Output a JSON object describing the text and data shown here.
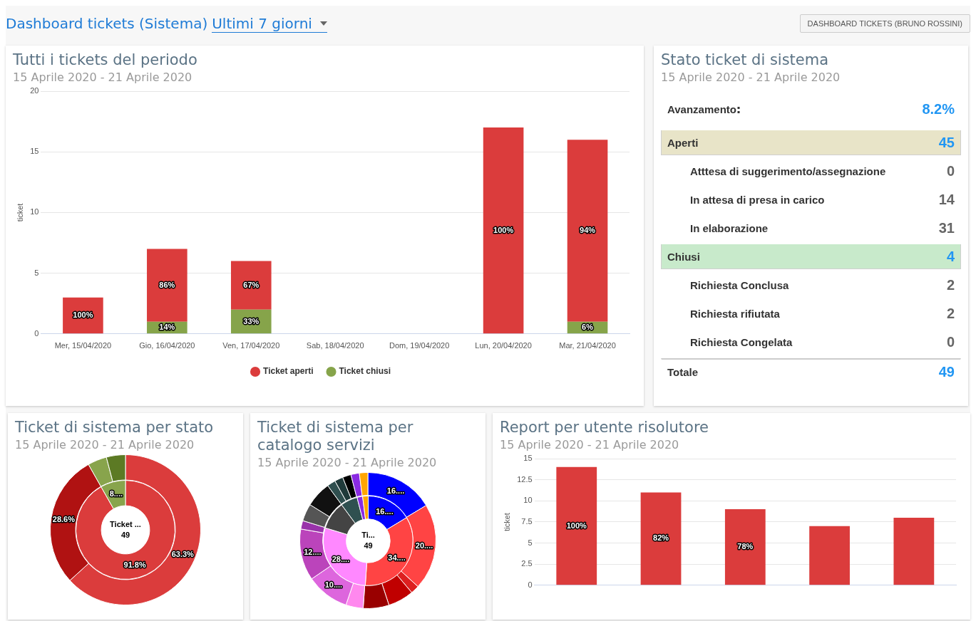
{
  "chart_data": [
    {
      "type": "other",
      "title": "Dashboard tickets (Sistema)",
      "annotations": [
        "Ultimi 7 giorni",
        "DASHBOARD TICKETS (BRUNO ROSSINI)"
      ]
    },
    {
      "type": "bar",
      "title": "Tutti i tickets del periodo",
      "subtitle": "15 Aprile 2020 - 21 Aprile 2020",
      "ylabel": "ticket",
      "stacked": true,
      "grid": "y",
      "legend": "bottom",
      "ylim": [
        0,
        20
      ],
      "yticks": [
        0,
        5,
        10,
        15,
        20
      ],
      "categories": [
        "Mer, 15/04/2020",
        "Gio, 16/04/2020",
        "Ven, 17/04/2020",
        "Sab, 18/04/2020",
        "Dom, 19/04/2020",
        "Lun, 20/04/2020",
        "Mar, 21/04/2020"
      ],
      "series": [
        {
          "name": "Ticket chiusi",
          "color": "#86a44a",
          "values": [
            0,
            1,
            2,
            0,
            0,
            0,
            1
          ]
        },
        {
          "name": "Ticket aperti",
          "color": "#db3c3c",
          "values": [
            3,
            6,
            4,
            0,
            0,
            17,
            15
          ]
        }
      ],
      "annotations": [
        "100%",
        "14%",
        "86%",
        "33%",
        "67%",
        "100%",
        "6%",
        "94%"
      ]
    },
    {
      "type": "other",
      "title": "Stato ticket di sistema",
      "subtitle": "15 Aprile 2020 - 21 Aprile 2020",
      "categories": [
        "Avanzamento",
        "Aperti",
        "Atttesa di suggerimento/assegnazione",
        "In attesa di presa in carico",
        "In elaborazione",
        "Chiusi",
        "Richiesta Conclusa",
        "Richiesta rifiutata",
        "Richiesta Congelata",
        "Totale"
      ],
      "value_labels": [
        "8.2%",
        "45",
        "0",
        "14",
        "31",
        "4",
        "2",
        "2",
        "0",
        "49"
      ],
      "colors": [
        null,
        "#e8e4c8",
        null,
        null,
        null,
        "#c8eacb",
        null,
        null,
        null,
        null
      ]
    },
    {
      "type": "donut",
      "title": "Ticket di sistema per stato",
      "subtitle": "15 Aprile 2020 - 21 Aprile 2020",
      "annotations": [
        "Ticket ...",
        "49"
      ],
      "series": [
        {
          "values": [
            91.8,
            8.2
          ],
          "colors": [
            "#db3c3c",
            "#88a44c"
          ],
          "value_labels": [
            "91.8%",
            "8...."
          ]
        },
        {
          "values": [
            63.3,
            28.6,
            4.1,
            4.1
          ],
          "colors": [
            "#db3c3c",
            "#b01212",
            "#88a44c",
            "#5c7a24"
          ],
          "value_labels": [
            "63.3%",
            "28.6%",
            null,
            null
          ]
        }
      ]
    },
    {
      "type": "donut",
      "title": "Ticket di sistema per catalogo servizi",
      "subtitle": "15 Aprile 2020 - 21 Aprile 2020",
      "annotations": [
        "Ti...",
        "49"
      ],
      "series": [
        {
          "values": [
            16.3,
            34.7,
            28.6,
            10.2,
            6.1,
            2.0,
            2.0
          ],
          "colors": [
            "#0000ff",
            "#ff4444",
            "#ff88ff",
            "#444444",
            "#2f5050",
            "#8a2be2",
            "#ffa500"
          ],
          "value_labels": [
            "16....",
            "34....",
            "28....",
            null,
            null,
            null,
            null
          ]
        },
        {
          "values": [
            16.3,
            20.4,
            2.0,
            6.1,
            6.1,
            4.1,
            10.2,
            12.2,
            2.0,
            4.1,
            6.1,
            2.0,
            2.0,
            2.0,
            2.0,
            2.0
          ],
          "colors": [
            "#0000ff",
            "#ff4444",
            "#dd2020",
            "#c00000",
            "#990000",
            "#ff88ee",
            "#dd66dd",
            "#bb44bb",
            "#9933aa",
            "#555555",
            "#111111",
            "#2f4f4f",
            "#1f3a3a",
            "#000000",
            "#8a2be2",
            "#ffa500"
          ],
          "value_labels": [
            "16....",
            "20....",
            null,
            null,
            null,
            null,
            "10....",
            "12....",
            null,
            null,
            null,
            null,
            null,
            null,
            null,
            null
          ]
        }
      ]
    },
    {
      "type": "bar",
      "title": "Report per utente risolutore",
      "subtitle": "15 Aprile 2020 - 21 Aprile 2020",
      "ylabel": "ticket",
      "grid": "y",
      "ylim": [
        0,
        15
      ],
      "yticks": [
        0,
        2.5,
        5,
        7.5,
        10,
        12.5,
        15
      ],
      "categories": [
        null,
        null,
        null,
        null,
        null
      ],
      "series": [
        {
          "color": "#db3c3c",
          "values": [
            14,
            11,
            9,
            7,
            8
          ]
        }
      ],
      "annotations": [
        "100%",
        "82%",
        "78%"
      ]
    }
  ]
}
